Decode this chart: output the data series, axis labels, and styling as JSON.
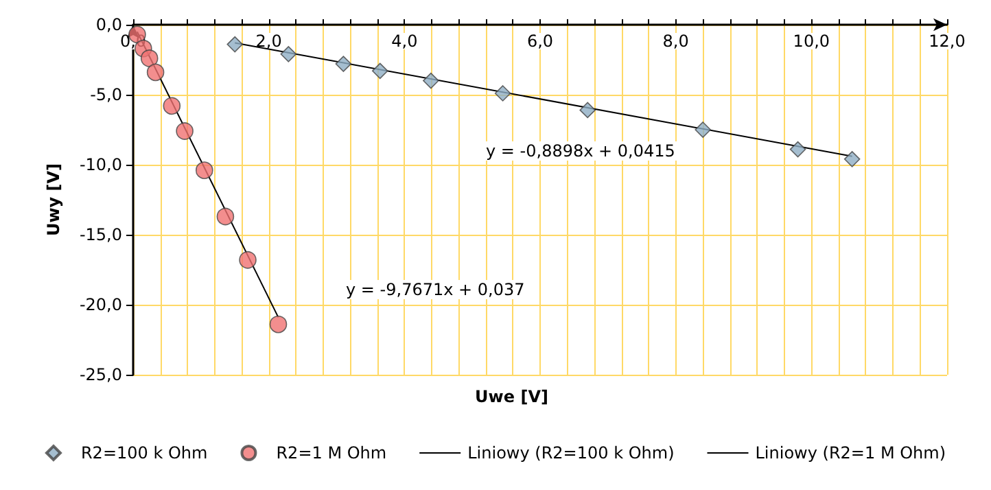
{
  "chart_data": {
    "type": "scatter",
    "xlabel": "Uwe [V]",
    "ylabel": "Uwy [V]",
    "xlim": [
      0,
      12
    ],
    "ylim": [
      -25,
      0
    ],
    "xticks": [
      {
        "value": 0,
        "label": "0,0"
      },
      {
        "value": 0.4,
        "label": null
      },
      {
        "value": 0.8,
        "label": null
      },
      {
        "value": 1.2,
        "label": null
      },
      {
        "value": 1.6,
        "label": null
      },
      {
        "value": 2,
        "label": "2,0"
      },
      {
        "value": 2.4,
        "label": null
      },
      {
        "value": 2.8,
        "label": null
      },
      {
        "value": 3.2,
        "label": null
      },
      {
        "value": 3.6,
        "label": null
      },
      {
        "value": 4,
        "label": "4,0"
      },
      {
        "value": 4.4,
        "label": null
      },
      {
        "value": 4.8,
        "label": null
      },
      {
        "value": 5.2,
        "label": null
      },
      {
        "value": 5.6,
        "label": null
      },
      {
        "value": 6,
        "label": "6,0"
      },
      {
        "value": 6.4,
        "label": null
      },
      {
        "value": 6.8,
        "label": null
      },
      {
        "value": 7.2,
        "label": null
      },
      {
        "value": 7.6,
        "label": null
      },
      {
        "value": 8,
        "label": "8,0"
      },
      {
        "value": 8.4,
        "label": null
      },
      {
        "value": 8.8,
        "label": null
      },
      {
        "value": 9.2,
        "label": null
      },
      {
        "value": 9.6,
        "label": null
      },
      {
        "value": 10,
        "label": "10,0"
      },
      {
        "value": 10.4,
        "label": null
      },
      {
        "value": 10.8,
        "label": null
      },
      {
        "value": 11.2,
        "label": null
      },
      {
        "value": 11.6,
        "label": null
      },
      {
        "value": 12,
        "label": "12,0"
      }
    ],
    "yticks": [
      {
        "value": 0,
        "label": "0,0"
      },
      {
        "value": -5,
        "label": "-5,0"
      },
      {
        "value": -10,
        "label": "-10,0"
      },
      {
        "value": -15,
        "label": "-15,0"
      },
      {
        "value": -20,
        "label": "-20,0"
      },
      {
        "value": -25,
        "label": "-25,0"
      }
    ],
    "grid": true,
    "legend": "bottom",
    "series": [
      {
        "name": "R2=100 k Ohm",
        "marker": "diamond",
        "color": "#8eaec4",
        "x": [
          1.5,
          2.29,
          3.1,
          3.64,
          4.39,
          5.45,
          6.7,
          8.4,
          9.8,
          10.6
        ],
        "values": [
          -1.4,
          -2.1,
          -2.8,
          -3.3,
          -4.0,
          -4.9,
          -6.1,
          -7.5,
          -8.9,
          -9.6
        ]
      },
      {
        "name": "R2=1 M Ohm",
        "marker": "circle",
        "color": "#f07272",
        "x": [
          0.06,
          0.15,
          0.24,
          0.33,
          0.57,
          0.76,
          1.05,
          1.36,
          1.69,
          2.14
        ],
        "values": [
          -0.7,
          -1.7,
          -2.4,
          -3.4,
          -5.8,
          -7.6,
          -10.4,
          -13.7,
          -16.8,
          -21.4
        ]
      },
      {
        "name": "Liniowy (R2=100 k Ohm)",
        "type": "line",
        "marker": "none",
        "color": "#000000",
        "x": [
          1.5,
          10.6
        ],
        "values": [
          -1.3,
          -9.4
        ]
      },
      {
        "name": "Liniowy (R2=1 M Ohm)",
        "type": "line",
        "marker": "none",
        "color": "#000000",
        "x": [
          0.06,
          2.14
        ],
        "values": [
          -0.5,
          -20.9
        ]
      }
    ],
    "annotations": [
      "y = -0,8898x + 0,0415",
      "y = -9,7671x + 0,037"
    ]
  }
}
